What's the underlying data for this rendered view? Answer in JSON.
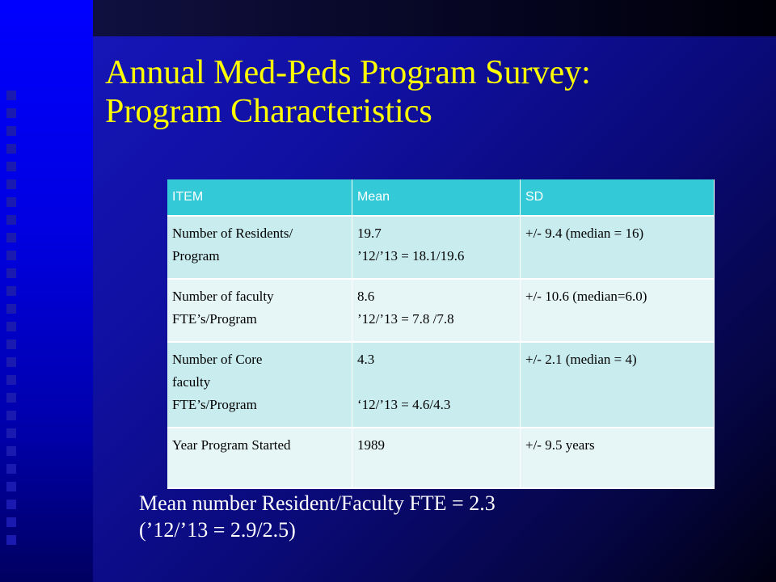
{
  "slide": {
    "title_line1": "Annual Med-Peds Program Survey:",
    "title_line2": "Program Characteristics"
  },
  "table": {
    "headers": [
      "ITEM",
      "Mean",
      "SD"
    ],
    "rows": [
      {
        "item": [
          "Number of Residents/",
          "Program"
        ],
        "mean": [
          "19.7",
          "’12/’13 = 18.1/19.6"
        ],
        "sd": "+/- 9.4 (median = 16)"
      },
      {
        "item": [
          "Number of faculty",
          "FTE’s/Program"
        ],
        "mean": [
          "8.6",
          "’12/’13 = 7.8 /7.8"
        ],
        "sd": "+/- 10.6 (median=6.0)"
      },
      {
        "item": [
          "Number of Core",
          "faculty",
          "FTE’s/Program"
        ],
        "mean": [
          "4.3",
          "",
          "‘12/’13 = 4.6/4.3"
        ],
        "sd": "+/- 2.1 (median = 4)"
      },
      {
        "item": [
          "Year Program Started"
        ],
        "mean": [
          "1989"
        ],
        "sd": "+/- 9.5 years"
      }
    ]
  },
  "footer": {
    "line1": "Mean number Resident/Faculty FTE = 2.3",
    "line2": "(’12/’13 = 2.9/2.5)"
  }
}
